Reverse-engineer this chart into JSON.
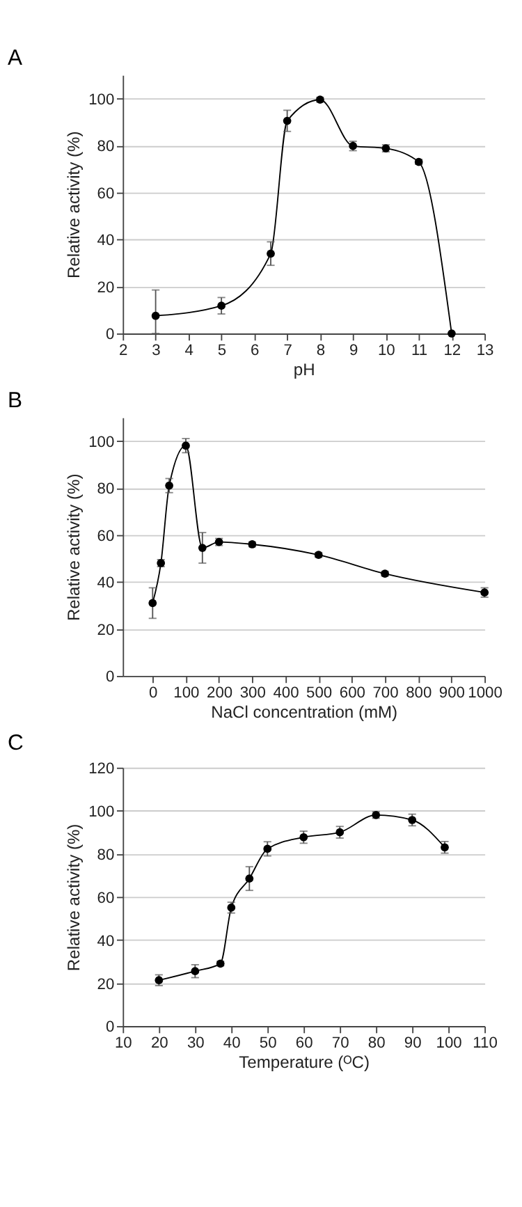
{
  "chart_data": [
    {
      "type": "line",
      "title": "A",
      "xlabel": "pH",
      "ylabel": "Relative activity (%)",
      "marker": "circle",
      "line_style": "solid",
      "grid": "y",
      "xlim": [
        2,
        13
      ],
      "xticks": [
        2,
        3,
        4,
        5,
        6,
        7,
        8,
        9,
        10,
        11,
        12,
        13
      ],
      "ylim": [
        0,
        110
      ],
      "yticks": [
        0,
        20,
        40,
        60,
        80,
        100
      ],
      "series": [
        {
          "color": "#000000",
          "x": [
            3,
            5,
            6.5,
            7,
            8,
            9,
            10,
            11,
            12
          ],
          "values": [
            7.5,
            11.8,
            34,
            90.5,
            99.5,
            79.8,
            78.8,
            73,
            0
          ],
          "errors": [
            [
              0,
              18.5
            ],
            3.5,
            5,
            4.5,
            1,
            2,
            1.5,
            1,
            null
          ]
        }
      ]
    },
    {
      "type": "line",
      "title": "B",
      "xlabel": "NaCl concentration (mM)",
      "ylabel": "Relative activity (%)",
      "marker": "circle",
      "line_style": "solid",
      "grid": "y",
      "xlim": [
        -90,
        1000
      ],
      "xticks": [
        0,
        100,
        200,
        300,
        400,
        500,
        600,
        700,
        800,
        900,
        1000
      ],
      "ylim": [
        0,
        110
      ],
      "yticks": [
        0,
        20,
        40,
        60,
        80,
        100
      ],
      "series": [
        {
          "color": "#000000",
          "x": [
            0,
            25,
            50,
            100,
            150,
            200,
            300,
            500,
            700,
            1000
          ],
          "values": [
            31,
            48,
            81,
            98,
            54.5,
            57,
            56,
            51.5,
            43.5,
            35.5
          ],
          "errors": [
            6.5,
            1.5,
            3,
            3,
            6.5,
            1.5,
            1,
            1,
            1,
            2
          ]
        }
      ]
    },
    {
      "type": "line",
      "title": "C",
      "xlabel": "Temperature (ᴼC)",
      "ylabel": "Relative activity (%)",
      "marker": "circle",
      "line_style": "solid",
      "grid": "y",
      "xlim": [
        10,
        110
      ],
      "xticks": [
        10,
        20,
        30,
        40,
        50,
        60,
        70,
        80,
        90,
        100,
        110
      ],
      "ylim": [
        0,
        120
      ],
      "yticks": [
        0,
        20,
        40,
        60,
        80,
        100,
        120
      ],
      "series": [
        {
          "color": "#000000",
          "x": [
            20,
            30,
            37,
            40,
            45,
            50,
            60,
            70,
            80,
            90,
            99
          ],
          "values": [
            21.3,
            25.5,
            29,
            55,
            68.5,
            82.3,
            87.7,
            90,
            98,
            95.7,
            83
          ],
          "errors": [
            2.5,
            3,
            1,
            2.5,
            5.5,
            3.3,
            2.8,
            2.7,
            1.5,
            2.7,
            2.7
          ]
        }
      ]
    }
  ]
}
